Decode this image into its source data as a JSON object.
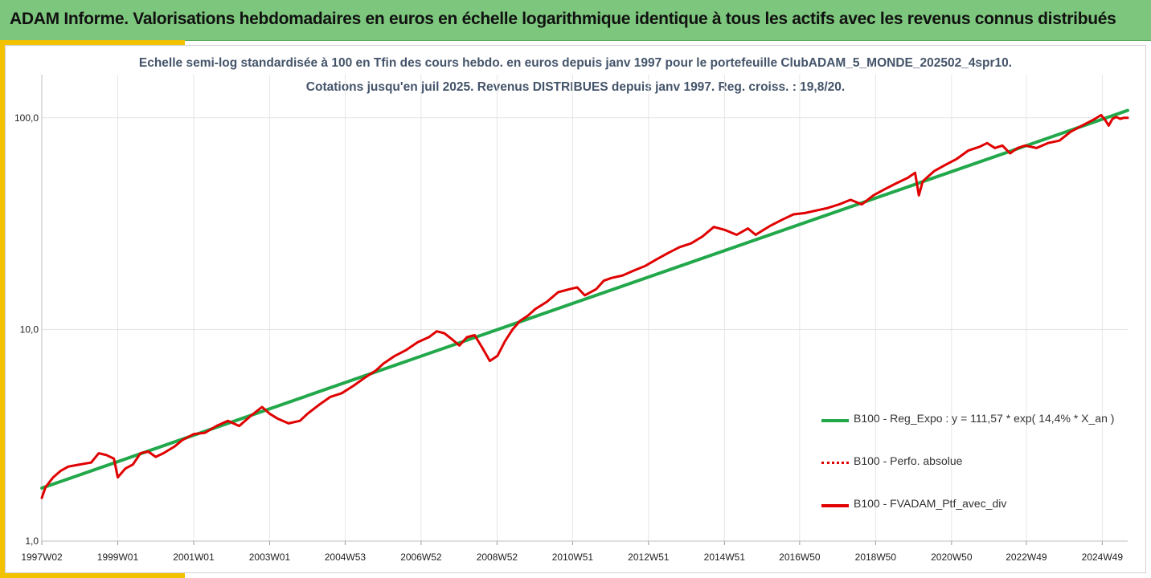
{
  "header": {
    "title": "ADAM Informe. Valorisations hebdomadaires en euros en échelle logarithmique identique à tous les actifs avec les revenus connus distribués"
  },
  "chart_data": {
    "type": "line",
    "title": "Echelle semi-log standardisée  à 100 en Tfin des cours hebdo.  en euros depuis janv 1997 pour le portefeuille ClubADAM_5_MONDE_202502_4spr10.",
    "subtitle": "Cotations  jusqu'en juil 2025. Revenus DISTRIBUES depuis janv 1997. Reg. croiss. : 19,8/20.",
    "y_scale": "log",
    "ylim": [
      1,
      160
    ],
    "y_ticks": [
      1,
      10,
      100
    ],
    "y_tick_labels": [
      "1,0",
      "10,0",
      "100,0"
    ],
    "xlim": [
      1997.0,
      2025.6
    ],
    "x_ticks": [
      1997.0,
      1999.0,
      2001.0,
      2003.0,
      2004.99,
      2006.99,
      2008.99,
      2010.98,
      2012.98,
      2014.98,
      2016.96,
      2018.96,
      2020.96,
      2022.93,
      2024.93
    ],
    "x_tick_labels": [
      "1997W02",
      "1999W01",
      "2001W01",
      "2003W01",
      "2004W53",
      "2006W52",
      "2008W52",
      "2010W51",
      "2012W51",
      "2014W51",
      "2016W50",
      "2018W50",
      "2020W50",
      "2022W49",
      "2024W49"
    ],
    "grid": {
      "vertical": true,
      "horizontal": true
    },
    "legend_position": "bottom-right",
    "series": [
      {
        "name": "B100 - Reg_Expo : y = 111,57 * exp( 14,4% *  X_an )",
        "color": "#22a84a",
        "style": "solid",
        "x": [
          1997.0,
          2025.6
        ],
        "y": [
          1.78,
          108.5
        ]
      },
      {
        "name": "B100 - Perfo. absolue",
        "color": "#e00000",
        "style": "dotted",
        "x": [],
        "y": []
      },
      {
        "name": "B100 - FVADAM_Ptf_avec_div",
        "color": "#e00000",
        "style": "solid",
        "x": [
          1997.0,
          1997.1,
          1997.3,
          1997.5,
          1997.7,
          1998.0,
          1998.3,
          1998.5,
          1998.7,
          1998.9,
          1999.0,
          1999.2,
          1999.4,
          1999.6,
          1999.8,
          2000.0,
          2000.2,
          2000.5,
          2000.7,
          2001.0,
          2001.3,
          2001.6,
          2001.9,
          2002.2,
          2002.5,
          2002.8,
          2003.0,
          2003.2,
          2003.5,
          2003.8,
          2004.0,
          2004.3,
          2004.6,
          2004.9,
          2005.2,
          2005.5,
          2005.8,
          2006.0,
          2006.3,
          2006.6,
          2006.9,
          2007.2,
          2007.4,
          2007.6,
          2007.8,
          2008.0,
          2008.2,
          2008.4,
          2008.6,
          2008.8,
          2009.0,
          2009.2,
          2009.4,
          2009.6,
          2009.8,
          2010.0,
          2010.3,
          2010.6,
          2010.9,
          2011.1,
          2011.3,
          2011.6,
          2011.8,
          2012.0,
          2012.3,
          2012.6,
          2012.9,
          2013.2,
          2013.5,
          2013.8,
          2014.1,
          2014.4,
          2014.7,
          2015.0,
          2015.3,
          2015.6,
          2015.8,
          2016.0,
          2016.2,
          2016.5,
          2016.8,
          2017.1,
          2017.4,
          2017.7,
          2018.0,
          2018.3,
          2018.6,
          2018.9,
          2019.2,
          2019.5,
          2019.8,
          2020.0,
          2020.1,
          2020.2,
          2020.3,
          2020.5,
          2020.8,
          2021.1,
          2021.4,
          2021.7,
          2021.9,
          2022.1,
          2022.3,
          2022.5,
          2022.7,
          2022.9,
          2023.2,
          2023.5,
          2023.8,
          2024.1,
          2024.4,
          2024.7,
          2024.9,
          2025.0,
          2025.1,
          2025.2,
          2025.3,
          2025.4,
          2025.5,
          2025.6
        ],
        "y": [
          1.6,
          1.8,
          2.0,
          2.15,
          2.25,
          2.3,
          2.35,
          2.6,
          2.55,
          2.45,
          2.0,
          2.2,
          2.3,
          2.6,
          2.65,
          2.5,
          2.6,
          2.8,
          3.0,
          3.2,
          3.25,
          3.5,
          3.7,
          3.5,
          3.9,
          4.3,
          4.0,
          3.8,
          3.6,
          3.7,
          4.0,
          4.4,
          4.8,
          5.0,
          5.4,
          5.9,
          6.4,
          6.9,
          7.5,
          8.0,
          8.7,
          9.2,
          9.8,
          9.6,
          9.0,
          8.4,
          9.2,
          9.4,
          8.2,
          7.1,
          7.5,
          8.8,
          10.0,
          11.0,
          11.6,
          12.5,
          13.5,
          15.0,
          15.5,
          15.8,
          14.5,
          15.5,
          17.0,
          17.5,
          18.0,
          19.0,
          20.0,
          21.5,
          23.0,
          24.5,
          25.5,
          27.5,
          30.5,
          29.5,
          28.0,
          30.0,
          28.0,
          29.5,
          31.0,
          33.0,
          35.0,
          35.5,
          36.5,
          37.5,
          39.0,
          41.0,
          39.0,
          43.0,
          46.0,
          49.0,
          52.0,
          55.0,
          43.0,
          50.0,
          52.0,
          56.0,
          60.0,
          64.0,
          70.0,
          73.0,
          76.0,
          72.0,
          74.0,
          68.0,
          72.0,
          74.0,
          72.0,
          76.0,
          78.0,
          86.0,
          92.0,
          98.0,
          103.0,
          98.0,
          92.0,
          99.0,
          101.0,
          99.0,
          100.0,
          100.0
        ]
      }
    ]
  }
}
